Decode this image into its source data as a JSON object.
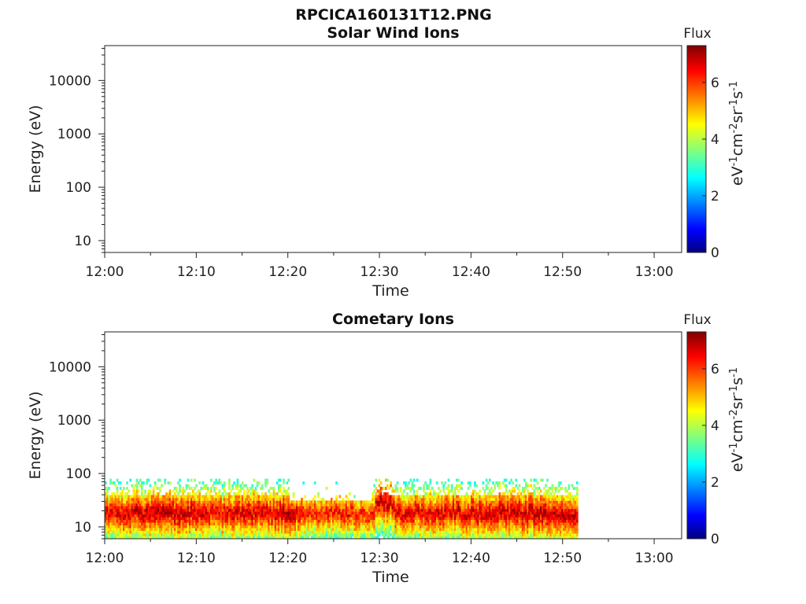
{
  "figure_title": "RPCICA160131T12.PNG",
  "chart_data": [
    {
      "type": "heatmap",
      "title": "Solar Wind Ions",
      "xlabel": "Time",
      "ylabel": "Energy (eV)",
      "x_ticks": [
        "12:00",
        "12:10",
        "12:20",
        "12:30",
        "12:40",
        "12:50",
        "13:00"
      ],
      "y_ticks": [
        "10",
        "100",
        "1000",
        "10000"
      ],
      "y_scale": "log",
      "ylim": [
        6,
        45000
      ],
      "x_range_minutes": [
        0,
        63
      ],
      "colorbar": {
        "title": "Flux",
        "label": "eV-1cm-2sr-1s-1",
        "ticks": [
          "0",
          "2",
          "4",
          "6"
        ],
        "range": [
          0,
          7.3
        ]
      },
      "data": []
    },
    {
      "type": "heatmap",
      "title": "Cometary Ions",
      "xlabel": "Time",
      "ylabel": "Energy (eV)",
      "x_ticks": [
        "12:00",
        "12:10",
        "12:20",
        "12:30",
        "12:40",
        "12:50",
        "13:00"
      ],
      "y_ticks": [
        "10",
        "100",
        "1000",
        "10000"
      ],
      "y_scale": "log",
      "ylim": [
        6,
        45000
      ],
      "x_range_minutes": [
        0,
        63
      ],
      "colorbar": {
        "title": "Flux",
        "label": "eV-1cm-2sr-1s-1",
        "ticks": [
          "0",
          "2",
          "4",
          "6"
        ],
        "range": [
          0,
          7.3
        ]
      },
      "data_extent_minutes": [
        0,
        51.5
      ],
      "energy_band_ev": {
        "min": 6,
        "max": 80,
        "peak": 18
      },
      "peak_flux_vs_time": [
        {
          "t": 0,
          "v": 6.6
        },
        {
          "t": 3,
          "v": 6.8
        },
        {
          "t": 6,
          "v": 7.0
        },
        {
          "t": 9,
          "v": 6.9
        },
        {
          "t": 12,
          "v": 6.6
        },
        {
          "t": 15,
          "v": 6.8
        },
        {
          "t": 18,
          "v": 6.7
        },
        {
          "t": 20,
          "v": 7.0
        },
        {
          "t": 22,
          "v": 6.3
        },
        {
          "t": 26,
          "v": 6.4
        },
        {
          "t": 29,
          "v": 6.2
        },
        {
          "t": 30,
          "v": 7.0
        },
        {
          "t": 33,
          "v": 6.6
        },
        {
          "t": 36,
          "v": 6.7
        },
        {
          "t": 40,
          "v": 6.8
        },
        {
          "t": 44,
          "v": 6.9
        },
        {
          "t": 47,
          "v": 7.0
        },
        {
          "t": 51.5,
          "v": 6.8
        }
      ]
    }
  ]
}
